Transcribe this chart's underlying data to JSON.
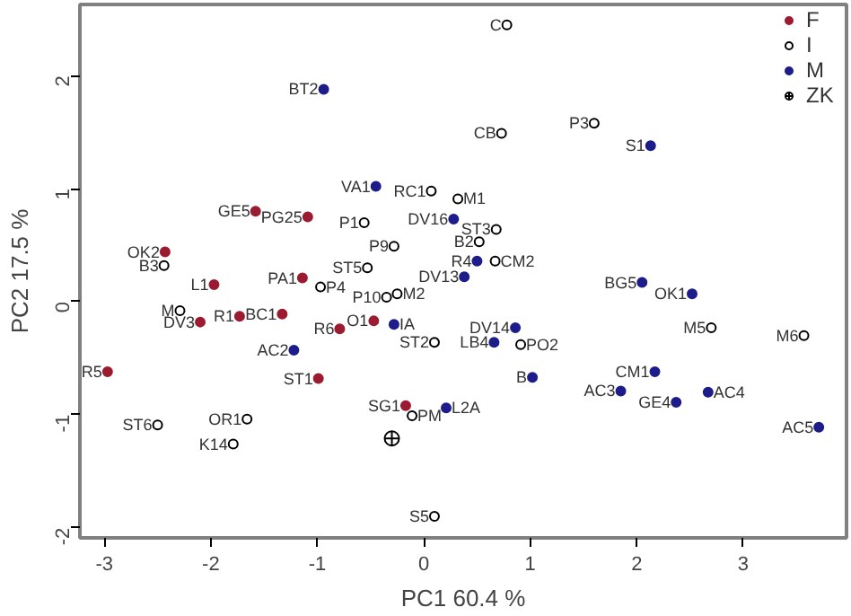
{
  "chart_data": {
    "type": "scatter",
    "xlabel": "PC1 60.4 %",
    "ylabel": "PC2 17.5 %",
    "xlim": [
      -3.23,
      3.97
    ],
    "ylim": [
      -2.09,
      2.63
    ],
    "xticks": [
      -3,
      -2,
      -1,
      0,
      1,
      2,
      3
    ],
    "yticks": [
      -2,
      -1,
      0,
      1,
      2
    ],
    "grid": false,
    "legend": "top right",
    "marker": "circle",
    "series": [
      {
        "name": "F",
        "color": "#9b1b30",
        "x": [
          -1.58,
          -1.09,
          -2.43,
          -1.97,
          -1.14,
          -1.73,
          -2.1,
          -1.33,
          -0.79,
          -0.47,
          -2.97,
          -0.99,
          -0.17
        ],
        "values": [
          0.8,
          0.75,
          0.44,
          0.15,
          0.21,
          -0.13,
          -0.18,
          -0.11,
          -0.24,
          -0.17,
          -0.62,
          -0.68,
          -0.92
        ],
        "value_labels": [
          "GE5",
          "PG25",
          "OK2",
          "L1",
          "PA1",
          "R1",
          "DV3",
          "BC1",
          "R6",
          "O1",
          "R5",
          "ST1",
          "SG1"
        ]
      },
      {
        "name": "I",
        "color": "#ffffff",
        "x": [
          0.78,
          0.73,
          1.6,
          0.07,
          0.32,
          0.68,
          0.52,
          0.67,
          -0.56,
          -0.28,
          -0.53,
          -2.44,
          -0.97,
          -0.35,
          -0.25,
          -2.29,
          0.1,
          0.91,
          2.7,
          3.57,
          -2.5,
          -1.66,
          -1.79,
          -0.11,
          0.1
        ],
        "values": [
          2.45,
          1.49,
          1.58,
          0.98,
          0.91,
          0.64,
          0.53,
          0.36,
          0.7,
          0.49,
          0.3,
          0.32,
          0.13,
          0.04,
          0.07,
          -0.08,
          -0.36,
          -0.38,
          -0.23,
          -0.3,
          -1.09,
          -1.04,
          -1.26,
          -1.01,
          -1.9
        ],
        "value_labels": [
          "C",
          "CB",
          "P3",
          "RC1",
          "M1",
          "ST3",
          "B2",
          "CM2",
          "P1",
          "P9",
          "ST5",
          "B3",
          "P4",
          "P10",
          "M2",
          "M",
          "ST2",
          "PO2",
          "M5",
          "M6",
          "ST6",
          "OR1",
          "K14",
          "PM",
          "S5"
        ]
      },
      {
        "name": "M",
        "color": "#1c1c8a",
        "x": [
          -0.94,
          -0.45,
          2.13,
          0.28,
          0.5,
          0.38,
          2.05,
          2.52,
          -0.28,
          -1.22,
          0.86,
          0.66,
          1.02,
          2.17,
          1.85,
          2.67,
          2.37,
          3.71,
          0.21
        ],
        "values": [
          1.88,
          1.02,
          1.38,
          0.73,
          0.36,
          0.22,
          0.17,
          0.07,
          -0.2,
          -0.43,
          -0.23,
          -0.36,
          -0.67,
          -0.62,
          -0.79,
          -0.8,
          -0.89,
          -1.11,
          -0.94
        ],
        "value_labels": [
          "BT2",
          "VA1",
          "S1",
          "DV16",
          "R4",
          "DV13",
          "BG5",
          "OK1",
          "IA",
          "AC2",
          "DV14",
          "LB4",
          "B",
          "CM1",
          "AC3",
          "AC4",
          "GE4",
          "AC5",
          "L2A"
        ]
      },
      {
        "name": "ZK",
        "color": "#000000",
        "marker": "cross",
        "x": [
          -0.3
        ],
        "values": [
          -1.21
        ],
        "value_labels": [
          null
        ]
      }
    ]
  }
}
